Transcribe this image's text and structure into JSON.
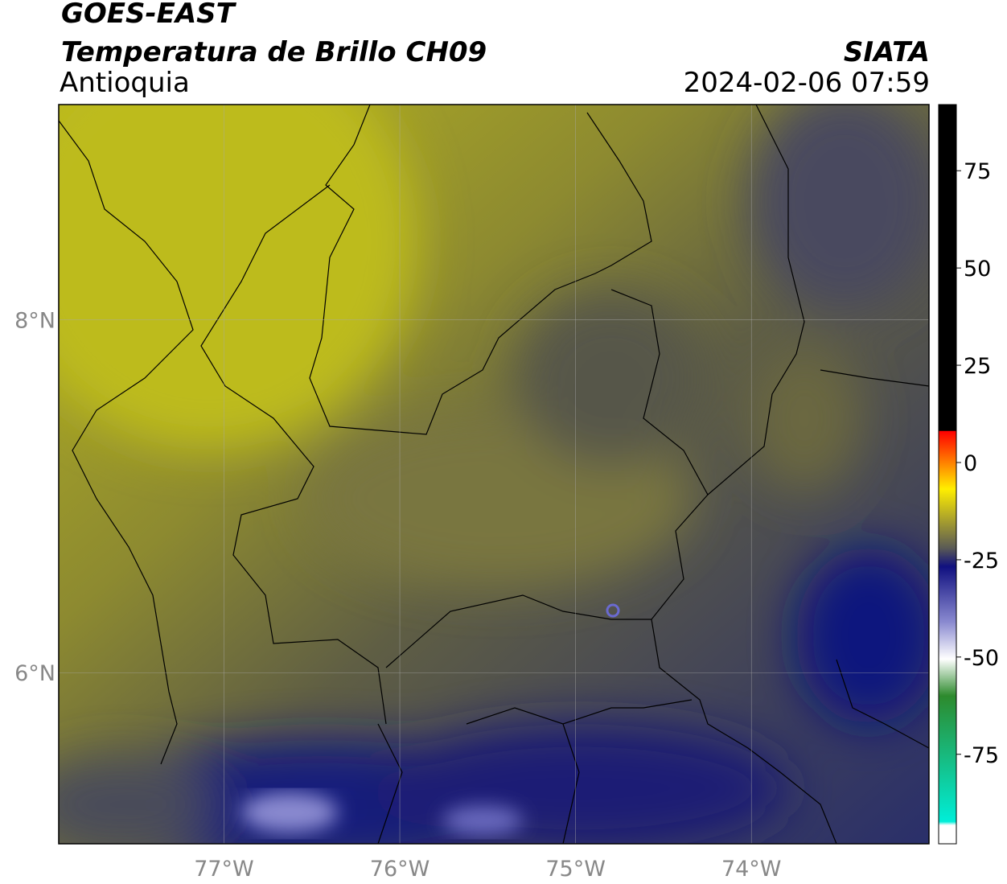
{
  "header": {
    "satellite": "GOES-EAST",
    "product": "Temperatura de Brillo CH09",
    "region": "Antioquia",
    "source": "SIATA",
    "datetime": "2024-02-06 07:59"
  },
  "map": {
    "lonlim": [
      -77.94,
      -72.99
    ],
    "latlim": [
      5.03,
      9.22
    ],
    "lon_ticks": [
      {
        "value": -77,
        "label": "77°W"
      },
      {
        "value": -76,
        "label": "76°W"
      },
      {
        "value": -75,
        "label": "75°W"
      },
      {
        "value": -74,
        "label": "74°W"
      }
    ],
    "lat_ticks": [
      {
        "value": 8,
        "label": "8°N"
      },
      {
        "value": 6,
        "label": "6°N"
      }
    ]
  },
  "colorbar": {
    "lim": [
      -98,
      92
    ],
    "ticks": [
      75,
      50,
      25,
      0,
      -25,
      -50,
      -75
    ]
  }
}
